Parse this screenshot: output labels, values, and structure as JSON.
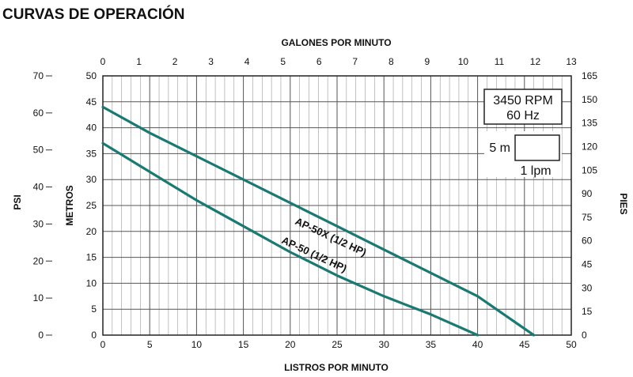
{
  "page_title": "CURVAS DE OPERACIÓN",
  "chart_data": {
    "type": "line",
    "xlabel": "LISTROS POR MINUTO",
    "ylabel": "METROS",
    "xlim": [
      0,
      50
    ],
    "ylim": [
      0,
      50
    ],
    "x_ticks": [
      "0",
      "5",
      "10",
      "15",
      "20",
      "25",
      "30",
      "35",
      "40",
      "45",
      "50"
    ],
    "y_ticks": [
      "0",
      "5",
      "10",
      "15",
      "20",
      "25",
      "30",
      "35",
      "40",
      "45",
      "50"
    ],
    "top_axis": {
      "label": "GALONES POR MINUTO",
      "range": [
        0,
        13
      ],
      "ticks": [
        "0",
        "1",
        "2",
        "3",
        "4",
        "5",
        "6",
        "7",
        "8",
        "9",
        "10",
        "11",
        "12",
        "13"
      ]
    },
    "left_axis": {
      "label": "PSI",
      "range": [
        0,
        70
      ],
      "ticks": [
        "0",
        "10",
        "20",
        "30",
        "40",
        "50",
        "60",
        "70"
      ]
    },
    "right_axis": {
      "label": "PIES",
      "range": [
        0,
        165
      ],
      "ticks": [
        "0",
        "15",
        "30",
        "45",
        "60",
        "75",
        "90",
        "105",
        "120",
        "135",
        "150",
        "165"
      ]
    },
    "grid": true,
    "series": [
      {
        "name": "AP-50X (1/2 HP)",
        "color": "#1a7a73",
        "x": [
          0,
          5,
          10,
          15,
          20,
          25,
          30,
          35,
          40,
          46
        ],
        "y": [
          44,
          39,
          34.5,
          30,
          25.5,
          21,
          16.5,
          12,
          7.5,
          0
        ]
      },
      {
        "name": "AP-50 (1/2 HP)",
        "color": "#1a7a73",
        "x": [
          0,
          5,
          10,
          15,
          20,
          25,
          30,
          35,
          40
        ],
        "y": [
          37,
          31.5,
          26,
          21,
          16,
          11.5,
          7.5,
          4,
          0
        ]
      }
    ],
    "annotations": {
      "rpm_box": [
        "3450 RPM",
        "60 Hz"
      ],
      "scale_box": {
        "vertical": "5 m",
        "horizontal": "1 lpm"
      }
    }
  }
}
